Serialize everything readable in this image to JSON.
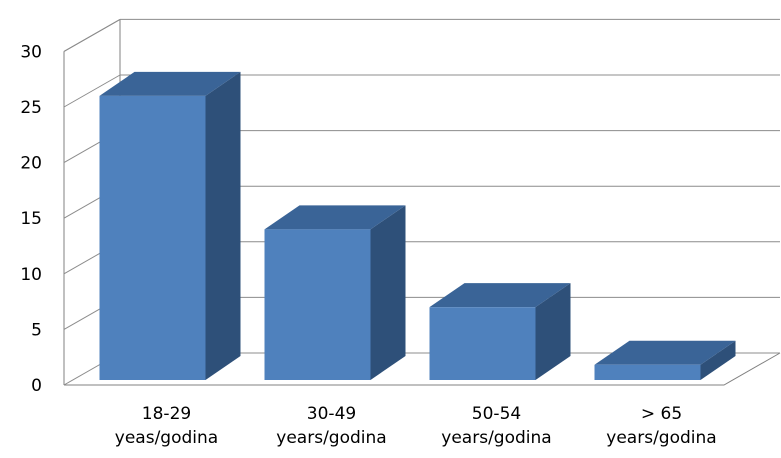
{
  "chart_data": {
    "type": "bar",
    "title": "",
    "xlabel": "",
    "ylabel": "",
    "categories": [
      [
        "18-29",
        "yeas/godina"
      ],
      [
        "30-49",
        "years/godina"
      ],
      [
        "50-54",
        "years/godina"
      ],
      [
        "> 65",
        "years/godina"
      ]
    ],
    "values": [
      26,
      14,
      7,
      2
    ],
    "ylim": [
      0,
      30
    ],
    "yticks": [
      "0",
      "5",
      "10",
      "15",
      "20",
      "25",
      "30"
    ],
    "grid": true,
    "legend": "none",
    "style": "3d-column",
    "colors": {
      "front": "#4F81BD",
      "top": "#3A6497",
      "side": "#2E5079",
      "gridline": "#8C8C8C",
      "wall_edge": "#808080"
    }
  }
}
